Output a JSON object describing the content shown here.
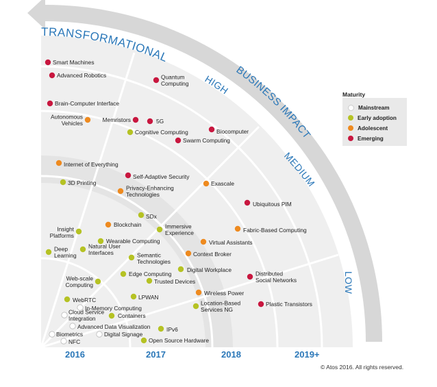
{
  "colors": {
    "mainstream": "#ffffff",
    "early_adoption": "#b5c224",
    "adolescent": "#ee8a1f",
    "emerging": "#c8173f",
    "accent_blue": "#2a77b8",
    "arrow_gray": "#d7d7d7",
    "field_gray": "#efefef",
    "band_gray": "#e3e3e3"
  },
  "headings": {
    "transformational": "TRANSFORMATIONAL",
    "high": "HIGH",
    "business_impact": "BUSINESS IMPACT",
    "medium": "MEDIUM",
    "low": "LOW"
  },
  "years": [
    "2016",
    "2017",
    "2018",
    "2019+"
  ],
  "legend": {
    "title": "Maturity",
    "items": [
      {
        "label": "Mainstream",
        "maturity": "mainstream"
      },
      {
        "label": "Early adoption",
        "maturity": "early_adoption"
      },
      {
        "label": "Adolescent",
        "maturity": "adolescent"
      },
      {
        "label": "Emerging",
        "maturity": "emerging"
      }
    ]
  },
  "technologies": [
    {
      "lines": [
        "Smart Machines"
      ],
      "maturity": "emerging"
    },
    {
      "lines": [
        "Advanced Robotics"
      ],
      "maturity": "emerging"
    },
    {
      "lines": [
        "Quantum",
        "Computing"
      ],
      "maturity": "emerging"
    },
    {
      "lines": [
        "Brain-Computer Interface"
      ],
      "maturity": "emerging"
    },
    {
      "lines": [
        "Autonomous",
        "Vehicles"
      ],
      "maturity": "adolescent"
    },
    {
      "lines": [
        "Memristors"
      ],
      "maturity": "emerging"
    },
    {
      "lines": [
        "5G"
      ],
      "maturity": "emerging"
    },
    {
      "lines": [
        "Cognitive Computing"
      ],
      "maturity": "early_adoption"
    },
    {
      "lines": [
        "Biocomputer"
      ],
      "maturity": "emerging"
    },
    {
      "lines": [
        "Swarm Computing"
      ],
      "maturity": "emerging"
    },
    {
      "lines": [
        "Internet of Everything"
      ],
      "maturity": "adolescent"
    },
    {
      "lines": [
        "Self-Adaptive Security"
      ],
      "maturity": "emerging"
    },
    {
      "lines": [
        "3D Printing"
      ],
      "maturity": "early_adoption"
    },
    {
      "lines": [
        "Exascale"
      ],
      "maturity": "adolescent"
    },
    {
      "lines": [
        "Privacy-Enhancing",
        "Technologies"
      ],
      "maturity": "adolescent"
    },
    {
      "lines": [
        "Ubiquitous PIM"
      ],
      "maturity": "emerging"
    },
    {
      "lines": [
        "SDx"
      ],
      "maturity": "early_adoption"
    },
    {
      "lines": [
        "Blockchain"
      ],
      "maturity": "adolescent"
    },
    {
      "lines": [
        "Insight",
        "Platforms"
      ],
      "maturity": "early_adoption"
    },
    {
      "lines": [
        "Immersive",
        "Experience"
      ],
      "maturity": "early_adoption"
    },
    {
      "lines": [
        "Fabric-Based Computing"
      ],
      "maturity": "adolescent"
    },
    {
      "lines": [
        "Wearable Computing"
      ],
      "maturity": "early_adoption"
    },
    {
      "lines": [
        "Virtual Assistants"
      ],
      "maturity": "adolescent"
    },
    {
      "lines": [
        "Deep",
        "Learning"
      ],
      "maturity": "early_adoption"
    },
    {
      "lines": [
        "Natural User",
        "Interfaces"
      ],
      "maturity": "early_adoption"
    },
    {
      "lines": [
        "Semantic",
        "Technologies"
      ],
      "maturity": "early_adoption"
    },
    {
      "lines": [
        "Context Broker"
      ],
      "maturity": "adolescent"
    },
    {
      "lines": [
        "Digital Workplace"
      ],
      "maturity": "early_adoption"
    },
    {
      "lines": [
        "Edge Computing"
      ],
      "maturity": "early_adoption"
    },
    {
      "lines": [
        "Distributed",
        "Social Networks"
      ],
      "maturity": "emerging"
    },
    {
      "lines": [
        "Web-scale",
        "Computing"
      ],
      "maturity": "early_adoption"
    },
    {
      "lines": [
        "Trusted Devices"
      ],
      "maturity": "early_adoption"
    },
    {
      "lines": [
        "Wireless Power"
      ],
      "maturity": "adolescent"
    },
    {
      "lines": [
        "LPWAN"
      ],
      "maturity": "early_adoption"
    },
    {
      "lines": [
        "WebRTC"
      ],
      "maturity": "early_adoption"
    },
    {
      "lines": [
        "Location-Based",
        "Services NG"
      ],
      "maturity": "early_adoption"
    },
    {
      "lines": [
        "Plastic Transistors"
      ],
      "maturity": "emerging"
    },
    {
      "lines": [
        "In-Memory Computing"
      ],
      "maturity": "mainstream"
    },
    {
      "lines": [
        "Cloud Service",
        "Integration"
      ],
      "maturity": "mainstream"
    },
    {
      "lines": [
        "Containers"
      ],
      "maturity": "early_adoption"
    },
    {
      "lines": [
        "Advanced Data Visualization"
      ],
      "maturity": "mainstream"
    },
    {
      "lines": [
        "IPv6"
      ],
      "maturity": "early_adoption"
    },
    {
      "lines": [
        "Biometrics"
      ],
      "maturity": "mainstream"
    },
    {
      "lines": [
        "Digital Signage"
      ],
      "maturity": "mainstream"
    },
    {
      "lines": [
        "NFC"
      ],
      "maturity": "mainstream"
    },
    {
      "lines": [
        "Open Source Hardware"
      ],
      "maturity": "early_adoption"
    }
  ],
  "copyright": "© Atos 2016. All rights reserved."
}
